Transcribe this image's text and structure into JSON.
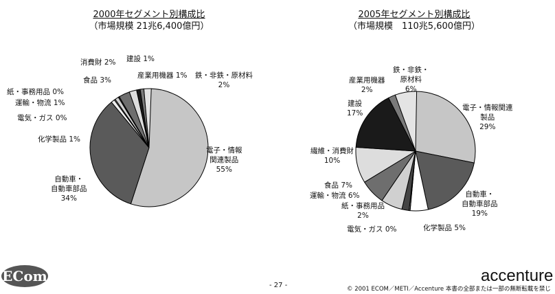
{
  "chart_data": [
    {
      "type": "pie",
      "title": "2000年セグメント別構成比",
      "subtitle": "（市場規模 21兆6,400億円）",
      "slices": [
        {
          "label": "電子・情報関連製品",
          "value": 55,
          "color": "#c6c6c6"
        },
        {
          "label": "自動車・自動車部品",
          "value": 34,
          "color": "#5a5a5a"
        },
        {
          "label": "化学製品",
          "value": 1,
          "color": "#eeeeee"
        },
        {
          "label": "電気・ガス",
          "value": 0,
          "color": "#999999"
        },
        {
          "label": "運輸・物流",
          "value": 1,
          "color": "#d0d0d0"
        },
        {
          "label": "紙・事務用品",
          "value": 0,
          "color": "#444444"
        },
        {
          "label": "食品",
          "value": 3,
          "color": "#6e6e6e"
        },
        {
          "label": "消費財",
          "value": 2,
          "color": "#dddddd"
        },
        {
          "label": "建設",
          "value": 1,
          "color": "#1a1a1a"
        },
        {
          "label": "産業用機器",
          "value": 1,
          "color": "#7a7a7a"
        },
        {
          "label": "鉄・非鉄・原材料",
          "value": 2,
          "color": "#e4e4e4"
        }
      ]
    },
    {
      "type": "pie",
      "title": "2005年セグメント別構成比",
      "subtitle": "（市場規模　110兆5,600億円）",
      "slices": [
        {
          "label": "電子・情報関連製品",
          "value": 29,
          "color": "#c6c6c6"
        },
        {
          "label": "自動車・自動車部品",
          "value": 19,
          "color": "#5a5a5a"
        },
        {
          "label": "化学製品",
          "value": 5,
          "color": "#ffffff"
        },
        {
          "label": "電気・ガス",
          "value": 0,
          "color": "#999999"
        },
        {
          "label": "紙・事務用品",
          "value": 2,
          "color": "#444444"
        },
        {
          "label": "運輸・物流",
          "value": 6,
          "color": "#d0d0d0"
        },
        {
          "label": "食品",
          "value": 7,
          "color": "#6e6e6e"
        },
        {
          "label": "繊維・消費財",
          "value": 10,
          "color": "#dddddd"
        },
        {
          "label": "建設",
          "value": 17,
          "color": "#1a1a1a"
        },
        {
          "label": "産業用機器",
          "value": 2,
          "color": "#7a7a7a"
        },
        {
          "label": "鉄・非鉄・原材料",
          "value": 6,
          "color": "#e4e4e4"
        }
      ]
    }
  ],
  "labels1": {
    "elec": "電子・情報",
    "elec2": "関連製品",
    "elec3": "55%",
    "auto": "自動車・",
    "auto2": "自動車部品",
    "auto3": "34%",
    "chem": "化学製品 1%",
    "gas": "電気・ガス 0%",
    "trans": "運輸・物流 1%",
    "paper": "紙・事務用品 0%",
    "food": "食品 3%",
    "cons": "消費財 2%",
    "build": "建設 1%",
    "ind": "産業用機器 1%",
    "steel": "鉄・非鉄・原材料",
    "steel2": "2%"
  },
  "labels2": {
    "elec": "電子・情報関連",
    "elec2": "製品",
    "elec3": "29%",
    "auto": "自動車・",
    "auto2": "自動車部品",
    "auto3": "19%",
    "chem": "化学製品 5%",
    "gas": "電気・ガス 0%",
    "paper": "紙・事務用品",
    "paper2": "2%",
    "trans": "運輸・物流 6%",
    "food": "食品 7%",
    "fiber": "繊維・消費財",
    "fiber2": "10%",
    "build": "建設",
    "build2": "17%",
    "ind": "産業用機器",
    "ind2": "2%",
    "steel": "鉄・非鉄・",
    "steel2": "原材料",
    "steel3": "6%"
  },
  "footer": {
    "logo": "ECom",
    "page": "- 27 -",
    "brand": "accenture",
    "copyright": "© 2001 ECOM／METI／Accenture 本書の全部または一部の無断転載を禁じます。"
  }
}
